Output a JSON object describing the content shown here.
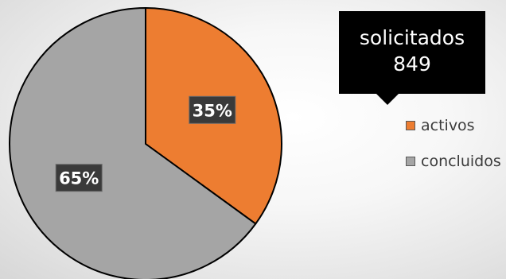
{
  "chart_data": {
    "type": "pie",
    "title": "",
    "categories": [
      "activos",
      "concluidos"
    ],
    "values": [
      35,
      65
    ],
    "labels": [
      "35%",
      "65%"
    ],
    "colors": [
      "#ed7d31",
      "#a5a5a5"
    ],
    "legend_position": "right",
    "callout": {
      "label": "solicitados",
      "value": "849"
    }
  }
}
